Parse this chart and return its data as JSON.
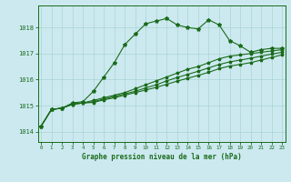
{
  "title": "Graphe pression niveau de la mer (hPa)",
  "xlabel_ticks": [
    0,
    1,
    2,
    3,
    4,
    5,
    6,
    7,
    8,
    9,
    10,
    11,
    12,
    13,
    14,
    15,
    16,
    17,
    18,
    19,
    20,
    21,
    22,
    23
  ],
  "ylim": [
    1013.6,
    1018.85
  ],
  "yticks": [
    1014,
    1015,
    1016,
    1017,
    1018
  ],
  "bg_color": "#cce9f0",
  "grid_color": "#aad4d4",
  "line_color": "#1a6b1a",
  "series": [
    [
      1014.2,
      1014.85,
      1014.9,
      1015.1,
      1015.15,
      1015.55,
      1016.1,
      1016.65,
      1017.35,
      1017.75,
      1018.15,
      1018.25,
      1018.35,
      1018.1,
      1018.0,
      1017.95,
      1018.3,
      1018.1,
      1017.5,
      1017.3,
      1017.05,
      1017.15,
      1017.2,
      1017.2
    ],
    [
      1014.2,
      1014.85,
      1014.9,
      1015.05,
      1015.1,
      1015.2,
      1015.3,
      1015.4,
      1015.5,
      1015.65,
      1015.8,
      1015.95,
      1016.1,
      1016.25,
      1016.4,
      1016.5,
      1016.65,
      1016.8,
      1016.9,
      1016.95,
      1017.0,
      1017.05,
      1017.1,
      1017.15
    ],
    [
      1014.2,
      1014.85,
      1014.9,
      1015.05,
      1015.1,
      1015.15,
      1015.25,
      1015.35,
      1015.45,
      1015.55,
      1015.68,
      1015.8,
      1015.95,
      1016.08,
      1016.2,
      1016.32,
      1016.45,
      1016.58,
      1016.68,
      1016.75,
      1016.82,
      1016.9,
      1016.98,
      1017.05
    ],
    [
      1014.2,
      1014.85,
      1014.9,
      1015.05,
      1015.1,
      1015.12,
      1015.22,
      1015.3,
      1015.4,
      1015.5,
      1015.6,
      1015.7,
      1015.82,
      1015.94,
      1016.05,
      1016.16,
      1016.28,
      1016.42,
      1016.52,
      1016.58,
      1016.65,
      1016.75,
      1016.85,
      1016.95
    ]
  ]
}
